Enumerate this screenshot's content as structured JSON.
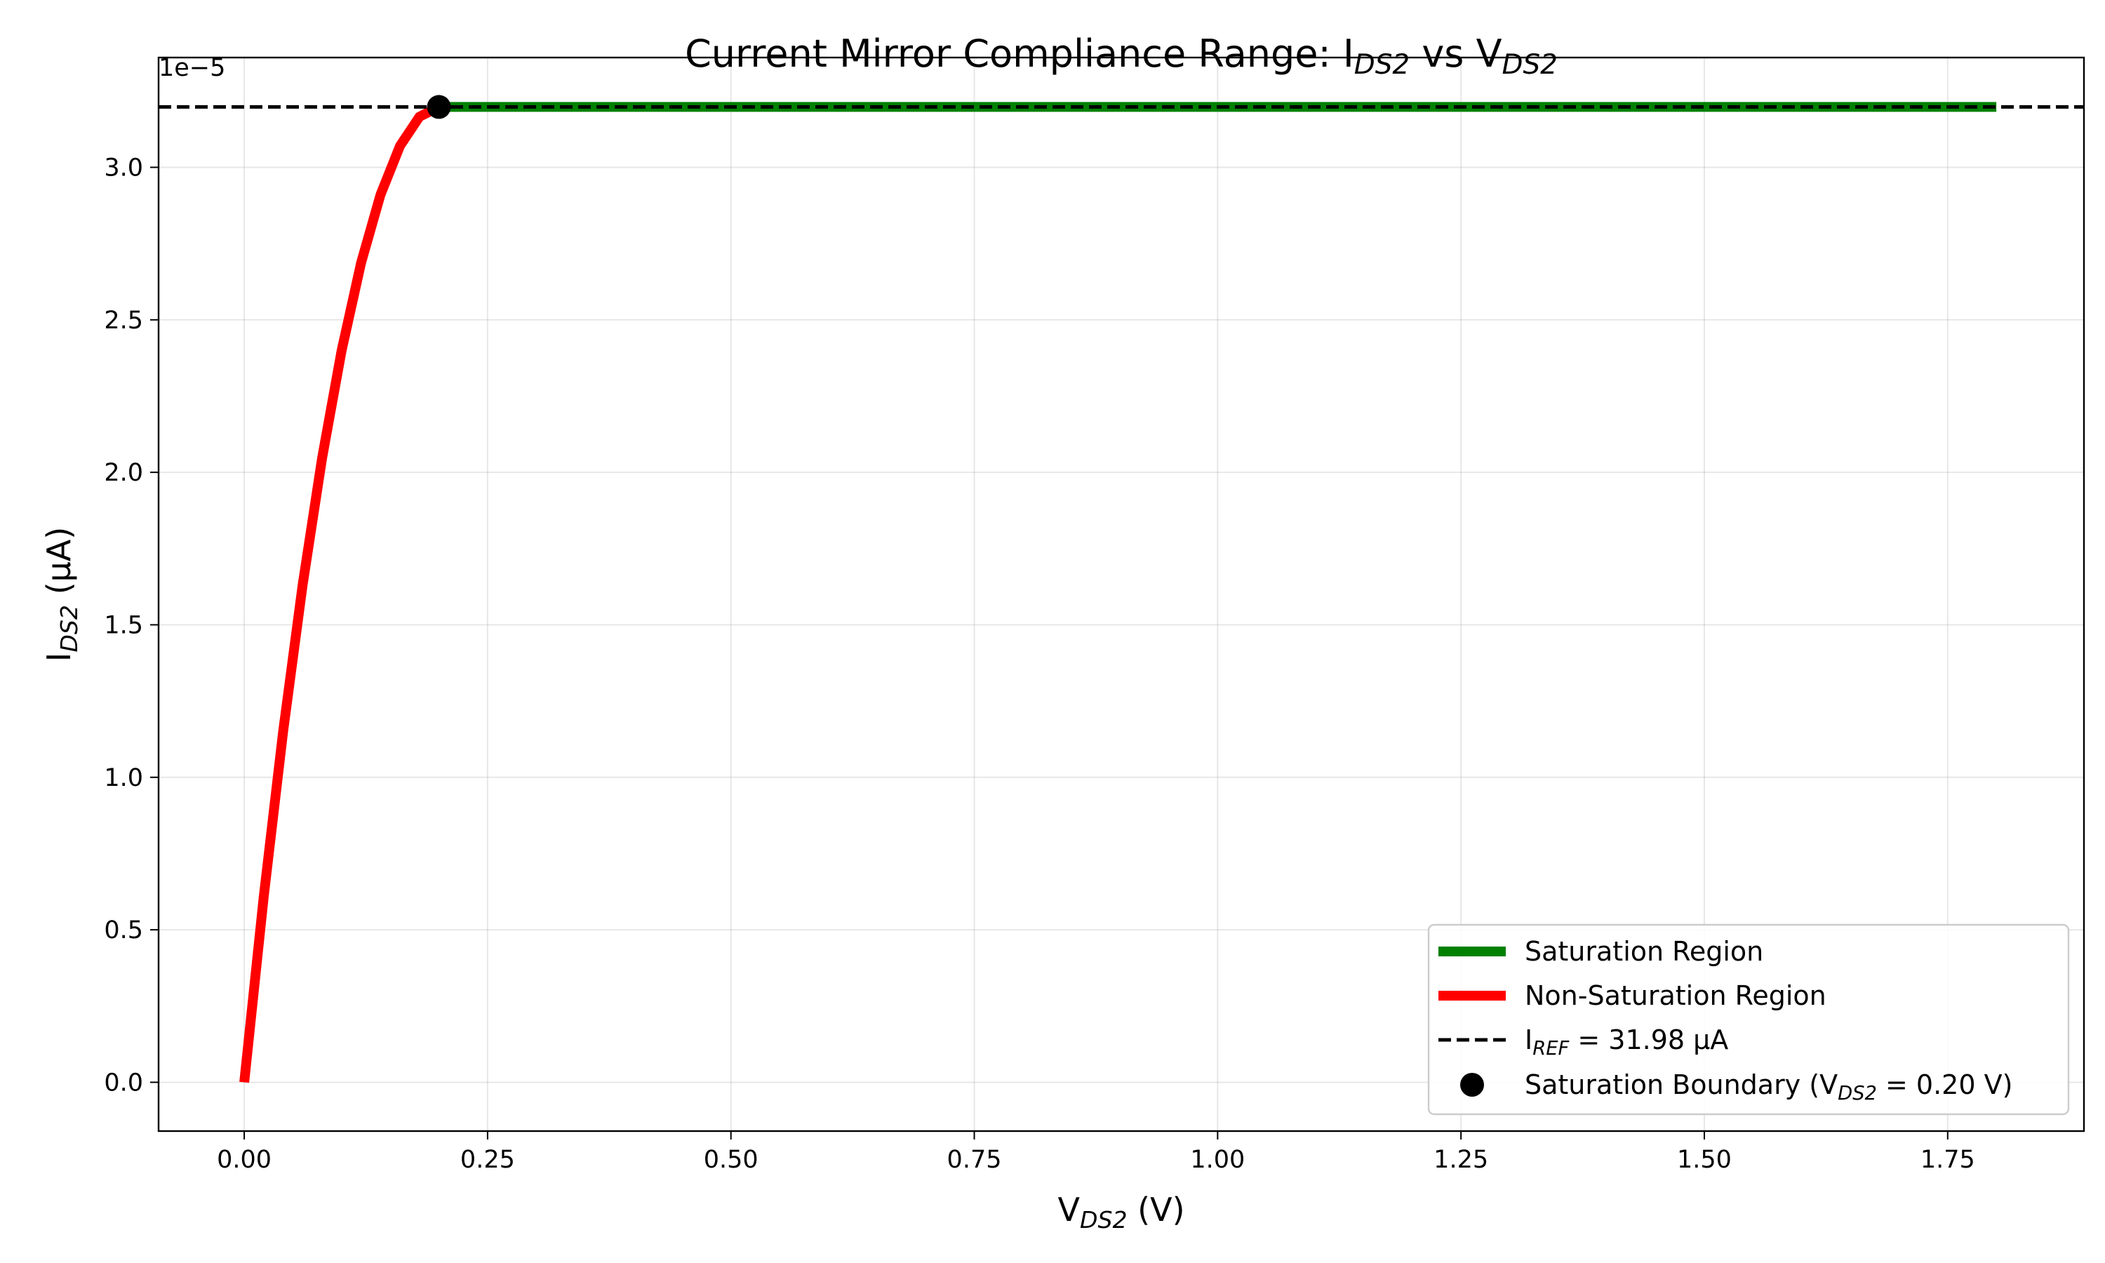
{
  "chart_data": {
    "type": "line",
    "title": {
      "prefix": "Current Mirror Compliance Range: I",
      "sub1": "DS2",
      "mid": " vs V",
      "sub2": "DS2"
    },
    "xlabel": {
      "main": "V",
      "sub": "DS2",
      "suffix": " (V)"
    },
    "ylabel": {
      "main": "I",
      "sub": "DS2",
      "suffix": " (µA)"
    },
    "offset_text": "1e−5",
    "xlim": [
      -0.088,
      1.89
    ],
    "ylim": [
      -1.6e-06,
      3.36e-05
    ],
    "x_ticks": [
      0,
      0.25,
      0.5,
      0.75,
      1.0,
      1.25,
      1.5,
      1.75
    ],
    "x_tick_labels": [
      "0.00",
      "0.25",
      "0.50",
      "0.75",
      "1.00",
      "1.25",
      "1.50",
      "1.75"
    ],
    "y_ticks": [
      0,
      5e-06,
      1e-05,
      1.5e-05,
      2e-05,
      2.5e-05,
      3e-05
    ],
    "y_tick_labels": [
      "0.0",
      "0.5",
      "1.0",
      "1.5",
      "2.0",
      "2.5",
      "3.0"
    ],
    "grid": true,
    "legend_position": "lower-right",
    "series": [
      {
        "name": "Saturation Region",
        "color": "#008000",
        "x": [
          0.2,
          1.8
        ],
        "y": [
          3.198e-05,
          3.198e-05
        ]
      },
      {
        "name": "Non-Saturation Region",
        "color": "#ff0000",
        "x": [
          0,
          0.02,
          0.04,
          0.06,
          0.08,
          0.1,
          0.12,
          0.14,
          0.16,
          0.18,
          0.2
        ],
        "y": [
          0,
          6.076e-06,
          1.1513e-05,
          1.631e-05,
          2.0467e-05,
          2.3985e-05,
          2.6863e-05,
          2.9102e-05,
          3.0701e-05,
          3.166e-05,
          3.198e-05
        ]
      }
    ],
    "reference_line": {
      "name_main": "I",
      "name_sub": "REF",
      "name_suffix": " = 31.98 µA",
      "y": 3.198e-05,
      "color": "#000000",
      "style": "dashed"
    },
    "boundary_point": {
      "name_main": "Saturation Boundary (V",
      "name_sub": "DS2",
      "name_suffix": " = 0.20 V)",
      "x": 0.2,
      "y": 3.198e-05,
      "color": "#000000"
    }
  }
}
